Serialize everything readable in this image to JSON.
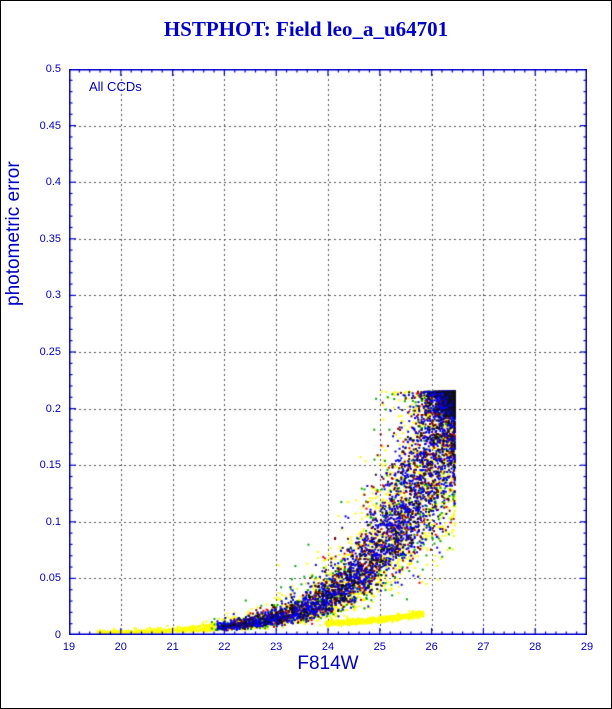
{
  "page": {
    "title": "HSTPHOT: Field leo_a_u64701"
  },
  "chart_data": {
    "type": "scatter",
    "title": "HSTPHOT: Field leo_a_u64701",
    "annotation": "All CCDs",
    "xlabel": "F814W",
    "ylabel": "photometric error",
    "xlim": [
      19,
      29
    ],
    "ylim": [
      0,
      0.5
    ],
    "x_ticks": [
      19,
      20,
      21,
      22,
      23,
      24,
      25,
      26,
      27,
      28,
      29
    ],
    "x_tick_labels": [
      "19",
      "20",
      "21",
      "22",
      "23",
      "24",
      "25",
      "26",
      "27",
      "28",
      "29"
    ],
    "y_ticks": [
      0,
      0.05,
      0.1,
      0.15,
      0.2,
      0.25,
      0.3,
      0.35,
      0.4,
      0.45,
      0.5
    ],
    "y_tick_labels": [
      "0",
      "0.05",
      "0.1",
      "0.15",
      "0.2",
      "0.25",
      "0.3",
      "0.35",
      "0.4",
      "0.45",
      "0.5"
    ],
    "grid": {
      "style": "dashed",
      "color": "#555555"
    },
    "axis_color": "#0000cc",
    "text_color": "#0000cc",
    "legend": "none",
    "seed": 20240601,
    "error_model": {
      "coeff": 0.0025,
      "k": 0.85,
      "ref_mag": 21.0,
      "floor": 0.0015,
      "cap": 0.215,
      "cap_jitter": 0.022
    },
    "series": [
      {
        "name": "ccd-yellow",
        "color": "#ffff00",
        "count": 3300,
        "m_max": 26.45,
        "m_spread": 6.9,
        "m_pow": 2.3,
        "noise": 0.4
      },
      {
        "name": "ccd-green",
        "color": "#00aa00",
        "count": 700,
        "m_max": 26.45,
        "m_spread": 4.7,
        "m_pow": 2.3,
        "noise": 0.42
      },
      {
        "name": "ccd-red",
        "color": "#ee0000",
        "count": 450,
        "m_max": 26.45,
        "m_spread": 4.5,
        "m_pow": 2.4,
        "noise": 0.33
      },
      {
        "name": "ccd-maroon",
        "color": "#7a0000",
        "count": 1200,
        "m_max": 26.45,
        "m_spread": 4.5,
        "m_pow": 2.4,
        "noise": 0.3
      },
      {
        "name": "ccd-blue",
        "color": "#0000ee",
        "count": 2600,
        "m_max": 26.45,
        "m_spread": 4.6,
        "m_pow": 2.4,
        "noise": 0.3
      },
      {
        "name": "ccd-black",
        "color": "#111111",
        "count": 650,
        "m_max": 26.45,
        "m_spread": 4.5,
        "m_pow": 2.4,
        "noise": 0.28
      }
    ],
    "arc_series": {
      "name": "yellow-lower-arc",
      "color": "#ffff00",
      "count": 750,
      "m_min": 23.95,
      "m_max": 25.85,
      "e_base": 0.0105,
      "e_amp": 0.0085,
      "e_pow": 1.7,
      "e_noise": 0.0012
    }
  }
}
